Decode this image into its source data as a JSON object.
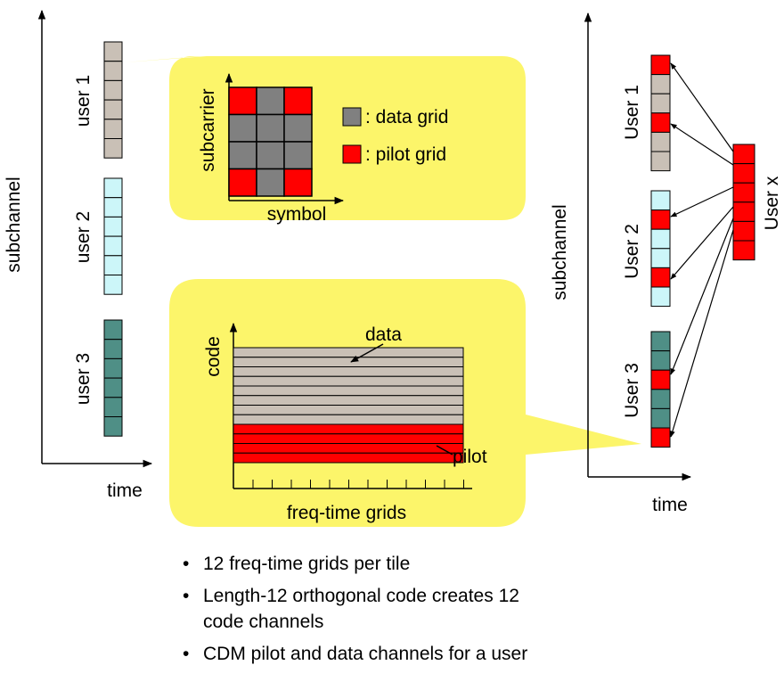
{
  "colors": {
    "user1": "#c9c0b6",
    "user2": "#ccf6f9",
    "user3": "#4f8f86",
    "pilot": "#ff0000",
    "data_grid": "#808080",
    "callout": "#fcf56a"
  },
  "left_chart": {
    "y_label": "subchannel",
    "x_label": "time",
    "users": [
      "user 1",
      "user 2",
      "user 3"
    ]
  },
  "top_callout": {
    "y_label": "subcarrier",
    "x_label": "symbol",
    "legend": [
      {
        "label": ": data grid",
        "color": "#808080"
      },
      {
        "label": ": pilot grid",
        "color": "#ff0000"
      }
    ]
  },
  "bottom_callout": {
    "y_label": "code",
    "x_label": "freq-time grids",
    "data_label": "data",
    "pilot_label": "pilot"
  },
  "right_chart": {
    "y_label": "subchannel",
    "x_label": "time",
    "users": [
      "User 1",
      "User 2",
      "User 3"
    ],
    "user_x_label": "User x"
  },
  "bullets": [
    "12 freq-time grids per tile",
    "Length-12 orthogonal code creates 12 code channels",
    "CDM pilot and data channels for a user"
  ],
  "bullet_char": "•"
}
